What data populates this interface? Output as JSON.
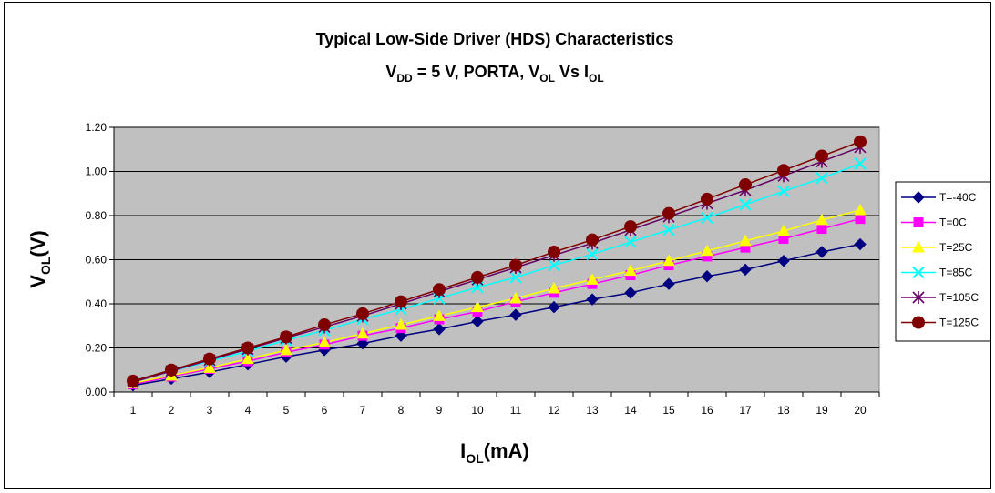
{
  "chart_data": {
    "type": "line",
    "title_line1": "Typical Low-Side Driver (HDS) Characteristics",
    "title_line2": {
      "v_main": "V",
      "v_sub": "DD",
      "eq": " = 5 V, PORTA, ",
      "vol_main": "V",
      "vol_sub": "OL",
      "vs": " Vs ",
      "iol_main": "I",
      "iol_sub": "OL"
    },
    "xlabel": {
      "main": "I",
      "sub": "OL",
      "rest": "(mA)"
    },
    "ylabel": {
      "main": "V",
      "sub": "OL",
      "rest": "(V)"
    },
    "x": [
      1,
      2,
      3,
      4,
      5,
      6,
      7,
      8,
      9,
      10,
      11,
      12,
      13,
      14,
      15,
      16,
      17,
      18,
      19,
      20
    ],
    "ylim": [
      0,
      1.2
    ],
    "yticks": [
      "0.00",
      "0.20",
      "0.40",
      "0.60",
      "0.80",
      "1.00",
      "1.20"
    ],
    "grid": true,
    "legend_position": "right",
    "plot_background": "#c0c0c0",
    "series": [
      {
        "name": "T=-40C",
        "color": "#000080",
        "marker": "diamond",
        "values": [
          0.03,
          0.06,
          0.09,
          0.125,
          0.16,
          0.19,
          0.22,
          0.255,
          0.285,
          0.32,
          0.35,
          0.385,
          0.42,
          0.45,
          0.49,
          0.525,
          0.555,
          0.595,
          0.635,
          0.67
        ]
      },
      {
        "name": "T=0C",
        "color": "#ff00ff",
        "marker": "square",
        "values": [
          0.035,
          0.07,
          0.105,
          0.14,
          0.18,
          0.215,
          0.255,
          0.29,
          0.33,
          0.365,
          0.41,
          0.45,
          0.49,
          0.53,
          0.575,
          0.615,
          0.655,
          0.695,
          0.74,
          0.785
        ]
      },
      {
        "name": "T=25C",
        "color": "#ffff00",
        "marker": "triangle",
        "values": [
          0.04,
          0.075,
          0.11,
          0.15,
          0.19,
          0.225,
          0.265,
          0.305,
          0.345,
          0.385,
          0.425,
          0.47,
          0.51,
          0.55,
          0.595,
          0.64,
          0.685,
          0.73,
          0.78,
          0.825
        ]
      },
      {
        "name": "T=85C",
        "color": "#00ffff",
        "marker": "x",
        "values": [
          0.045,
          0.095,
          0.14,
          0.185,
          0.235,
          0.28,
          0.33,
          0.375,
          0.425,
          0.475,
          0.52,
          0.575,
          0.625,
          0.68,
          0.735,
          0.79,
          0.85,
          0.91,
          0.97,
          1.035
        ]
      },
      {
        "name": "T=105C",
        "color": "#660066",
        "marker": "asterisk",
        "values": [
          0.045,
          0.095,
          0.145,
          0.195,
          0.245,
          0.295,
          0.345,
          0.4,
          0.455,
          0.51,
          0.565,
          0.62,
          0.675,
          0.735,
          0.795,
          0.855,
          0.915,
          0.98,
          1.045,
          1.11
        ]
      },
      {
        "name": "T=125C",
        "color": "#800000",
        "marker": "circle",
        "values": [
          0.05,
          0.1,
          0.15,
          0.2,
          0.25,
          0.305,
          0.355,
          0.41,
          0.465,
          0.52,
          0.575,
          0.635,
          0.69,
          0.75,
          0.81,
          0.875,
          0.94,
          1.005,
          1.07,
          1.135
        ]
      }
    ]
  }
}
